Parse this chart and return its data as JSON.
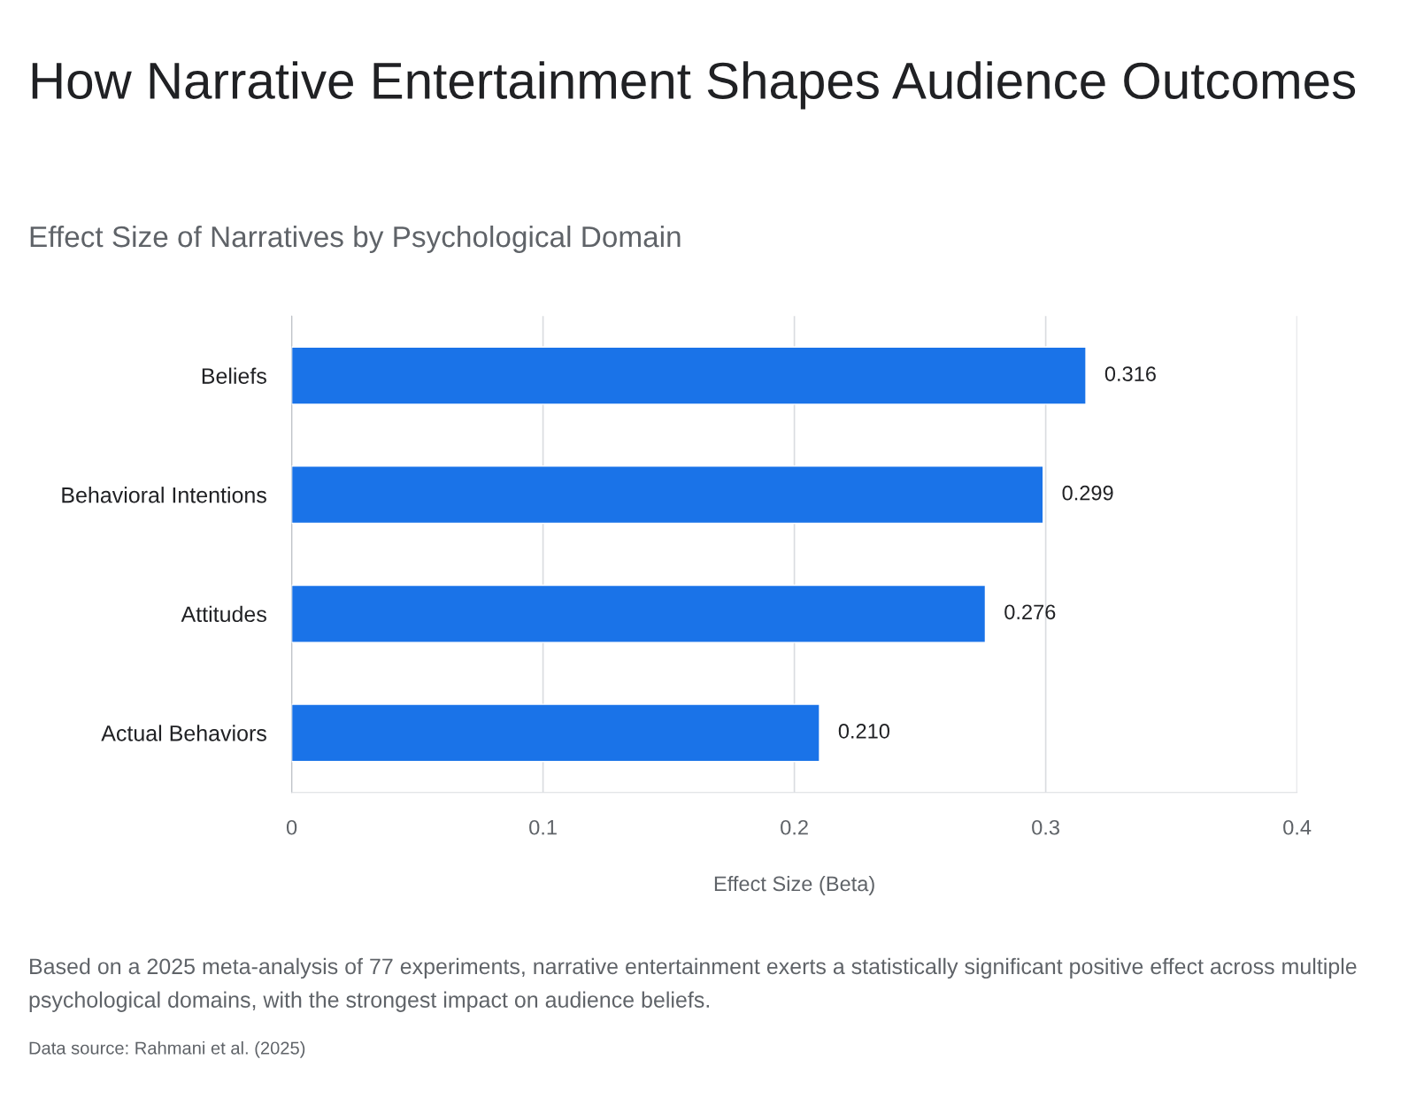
{
  "chart_data": {
    "type": "bar",
    "orientation": "horizontal",
    "title": "How Narrative Entertainment Shapes Audience Outcomes",
    "subtitle": "Effect Size of Narratives by Psychological Domain",
    "xlabel": "Effect Size (Beta)",
    "categories": [
      "Beliefs",
      "Behavioral Intentions",
      "Attitudes",
      "Actual Behaviors"
    ],
    "values": [
      0.316,
      0.299,
      0.276,
      0.21
    ],
    "color": "#1a73e8",
    "xlim": [
      0,
      0.4
    ],
    "xticks": [
      0,
      0.1,
      0.2,
      0.3,
      0.4
    ],
    "grid": "x",
    "value_labels": [
      "0.316",
      "0.299",
      "0.276",
      "0.210"
    ],
    "annotations": [
      "Based on a 2025 meta-analysis of 77 experiments, narrative entertainment exerts a statistically significant positive effect across multiple psychological domains, with the strongest impact on audience beliefs.",
      "Data source: Rahmani et al. (2025)"
    ]
  }
}
